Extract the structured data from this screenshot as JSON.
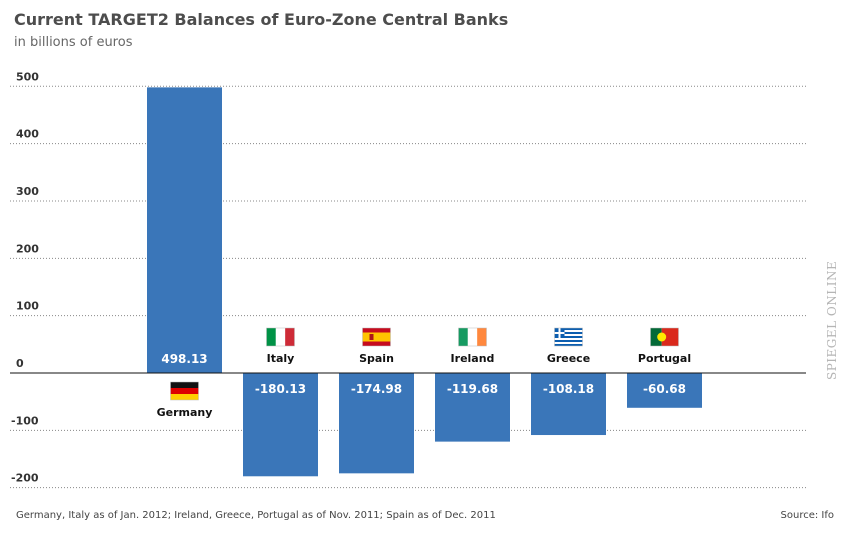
{
  "title": "Current TARGET2 Balances of Euro-Zone Central Banks",
  "subtitle": "in billions of euros",
  "footer_note": "Germany, Italy as of Jan. 2012; Ireland, Greece, Portugal as of Nov. 2011; Spain as of Dec. 2011",
  "source": "Source: Ifo",
  "watermark": "SPIEGEL ONLINE",
  "chart_data": {
    "type": "bar",
    "title": "Current TARGET2 Balances of Euro-Zone Central Banks",
    "subtitle": "in billions of euros",
    "categories": [
      "Germany",
      "Italy",
      "Spain",
      "Ireland",
      "Greece",
      "Portugal"
    ],
    "values": [
      498.13,
      -180.13,
      -174.98,
      -119.68,
      -108.18,
      -60.68
    ],
    "value_labels": [
      "498.13",
      "-180.13",
      "-174.98",
      "-119.68",
      "-108.18",
      "-60.68"
    ],
    "flags": [
      "flag-germany",
      "flag-italy",
      "flag-spain",
      "flag-ireland",
      "flag-greece",
      "flag-portugal"
    ],
    "yticks": [
      500,
      400,
      300,
      200,
      100,
      0,
      -100,
      -200
    ],
    "ylim": [
      -200,
      500
    ],
    "grid": true,
    "bar_color": "#3a76b9"
  }
}
